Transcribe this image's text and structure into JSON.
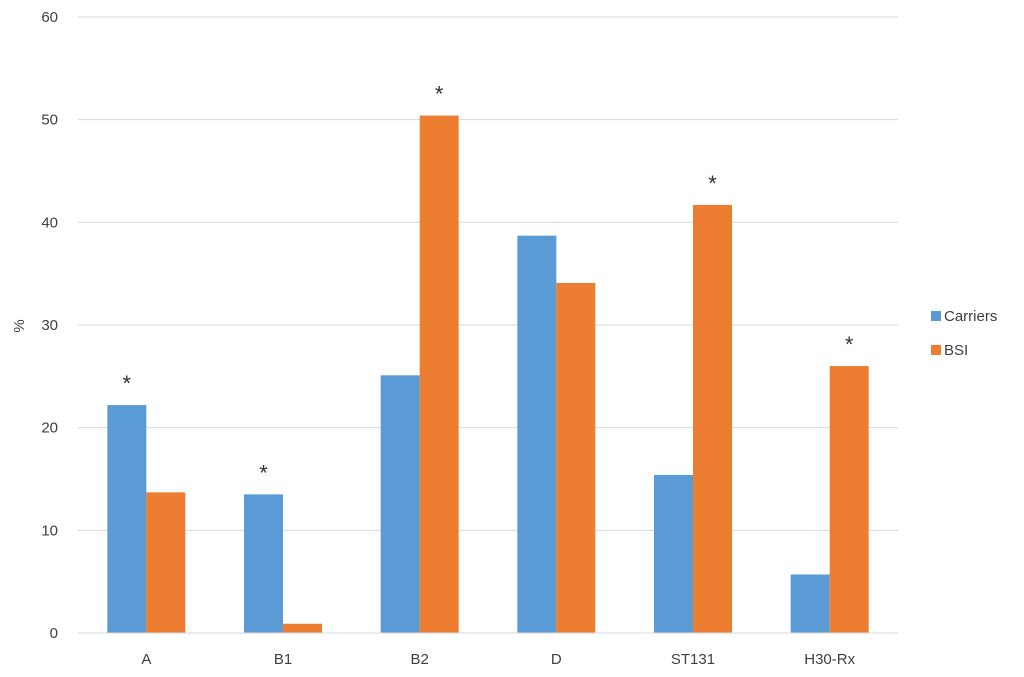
{
  "chart_data": {
    "type": "bar",
    "title": "",
    "xlabel": "",
    "ylabel": "%",
    "ylim": [
      0,
      60
    ],
    "yticks": [
      0,
      10,
      20,
      30,
      40,
      50,
      60
    ],
    "grid": true,
    "legend_position": "right",
    "categories": [
      "A",
      "B1",
      "B2",
      "D",
      "ST131",
      "H30-Rx"
    ],
    "series": [
      {
        "name": "Carriers",
        "color": "#5b9bd5",
        "values": [
          22.2,
          13.5,
          25.1,
          38.7,
          15.4,
          5.7
        ]
      },
      {
        "name": "BSI",
        "color": "#ed7d31",
        "values": [
          13.7,
          0.9,
          50.4,
          34.1,
          41.7,
          26.0
        ]
      }
    ],
    "annotations": [
      {
        "category": "A",
        "series": "Carriers",
        "text": "*"
      },
      {
        "category": "B1",
        "series": "Carriers",
        "text": "*"
      },
      {
        "category": "B2",
        "series": "BSI",
        "text": "*"
      },
      {
        "category": "ST131",
        "series": "BSI",
        "text": "*"
      },
      {
        "category": "H30-Rx",
        "series": "BSI",
        "text": "*"
      }
    ]
  }
}
